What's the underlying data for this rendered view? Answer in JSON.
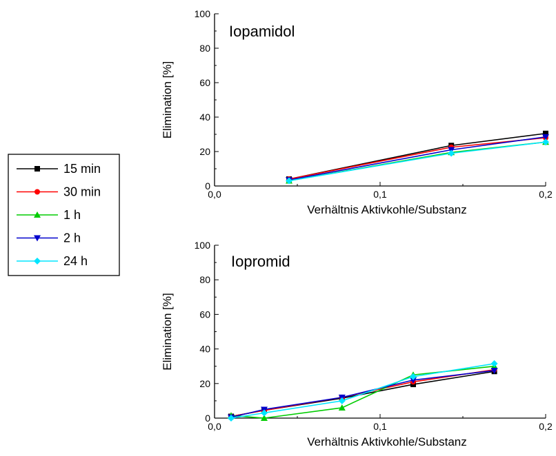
{
  "chart_data": [
    {
      "type": "line",
      "title": "Iopamidol",
      "xlabel": "Verhältnis Aktivkohle/Substanz",
      "ylabel": "Elimination [%]",
      "xlim": [
        0.0,
        0.2
      ],
      "ylim": [
        0,
        100
      ],
      "x_ticks": [
        "0,0",
        "0,1",
        "0,2"
      ],
      "y_ticks": [
        "0",
        "20",
        "40",
        "60",
        "80",
        "100"
      ],
      "x": [
        0.045,
        0.143,
        0.2
      ],
      "series": [
        {
          "name": "15 min",
          "color": "#000000",
          "marker": "square",
          "values": [
            4,
            23.5,
            30.5
          ]
        },
        {
          "name": "30 min",
          "color": "#ff0000",
          "marker": "circle",
          "values": [
            4,
            22.5,
            28
          ]
        },
        {
          "name": "1 h",
          "color": "#00cc00",
          "marker": "triangle-up",
          "values": [
            3,
            19.5,
            25.5
          ]
        },
        {
          "name": "2 h",
          "color": "#0000cc",
          "marker": "triangle-down",
          "values": [
            3.5,
            21,
            28.5
          ]
        },
        {
          "name": "24 h",
          "color": "#00e5ff",
          "marker": "diamond",
          "values": [
            3,
            19,
            25.5
          ]
        }
      ]
    },
    {
      "type": "line",
      "title": "Iopromid",
      "xlabel": "Verhältnis Aktivkohle/Substanz",
      "ylabel": "Elimination [%]",
      "xlim": [
        0.0,
        0.2
      ],
      "ylim": [
        0,
        100
      ],
      "x_ticks": [
        "0,0",
        "0,1",
        "0,2"
      ],
      "y_ticks": [
        "0",
        "20",
        "40",
        "60",
        "80",
        "100"
      ],
      "x": [
        0.01,
        0.03,
        0.077,
        0.12,
        0.169
      ],
      "series": [
        {
          "name": "15 min",
          "color": "#000000",
          "marker": "square",
          "values": [
            1,
            4.5,
            11.5,
            19.5,
            27
          ]
        },
        {
          "name": "30 min",
          "color": "#ff0000",
          "marker": "circle",
          "values": [
            1,
            4.5,
            12,
            21,
            28
          ]
        },
        {
          "name": "1 h",
          "color": "#00cc00",
          "marker": "triangle-up",
          "values": [
            1.5,
            0,
            6,
            25,
            30
          ]
        },
        {
          "name": "2 h",
          "color": "#0000cc",
          "marker": "triangle-down",
          "values": [
            0.5,
            5,
            12,
            22,
            27.5
          ]
        },
        {
          "name": "24 h",
          "color": "#00e5ff",
          "marker": "diamond",
          "values": [
            0,
            3,
            10,
            24,
            31.5
          ]
        }
      ]
    }
  ],
  "legend": {
    "entries": [
      {
        "name": "15 min",
        "color": "#000000",
        "marker": "square"
      },
      {
        "name": "30 min",
        "color": "#ff0000",
        "marker": "circle"
      },
      {
        "name": "1 h",
        "color": "#00cc00",
        "marker": "triangle-up"
      },
      {
        "name": "2 h",
        "color": "#0000cc",
        "marker": "triangle-down"
      },
      {
        "name": "24 h",
        "color": "#00e5ff",
        "marker": "diamond"
      }
    ]
  }
}
